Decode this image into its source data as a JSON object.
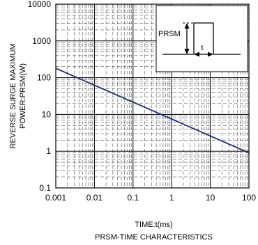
{
  "chart_data": {
    "type": "line",
    "title": "PRSM-TIME CHARACTERISTICS",
    "xlabel": "TIME:t(ms)",
    "ylabel_line1": "REVERSE  SURGE MAXIMUM",
    "ylabel_line2": "POWER:PRSM(W)",
    "x_scale": "log",
    "y_scale": "log",
    "xlim": [
      0.001,
      100
    ],
    "ylim": [
      0.1,
      10000
    ],
    "x_ticks": [
      "0.001",
      "0.01",
      "0.1",
      "1",
      "10",
      "100"
    ],
    "y_ticks": [
      "0.1",
      "1",
      "10",
      "100",
      "1000",
      "10000"
    ],
    "grid": true,
    "series": [
      {
        "x": [
          0.001,
          100
        ],
        "y": [
          180,
          0.9
        ],
        "color": "#1f2f78"
      }
    ],
    "inset": {
      "label_power": "PRSM",
      "label_time": "t"
    }
  }
}
